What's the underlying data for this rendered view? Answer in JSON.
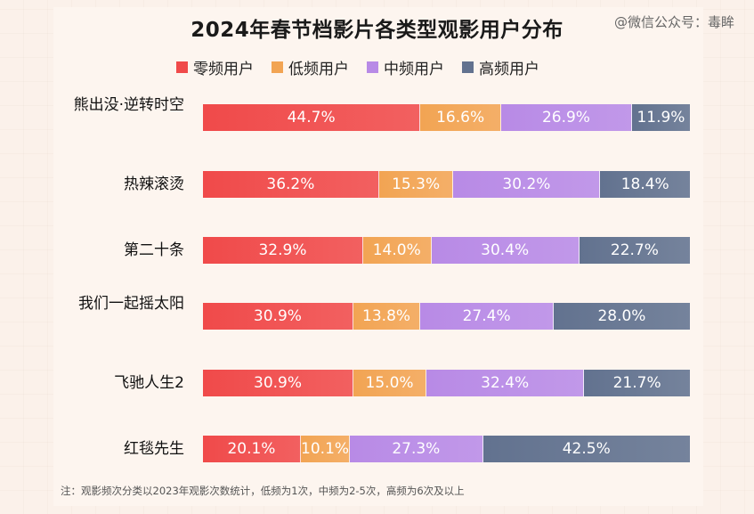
{
  "watermark": "@微信公众号：毒眸",
  "chart_data": {
    "type": "bar",
    "stacked": true,
    "orientation": "horizontal",
    "title": "2024年春节档影片各类型观影用户分布",
    "categories": [
      "熊出没·逆转时空",
      "热辣滚烫",
      "第二十条",
      "我们一起摇太阳",
      "飞驰人生2",
      "红毯先生"
    ],
    "series": [
      {
        "name": "零频用户",
        "color": "#f04a4a",
        "values": [
          44.7,
          36.2,
          32.9,
          30.9,
          30.9,
          20.1
        ]
      },
      {
        "name": "低频用户",
        "color": "#f2a453",
        "values": [
          16.6,
          15.3,
          14.0,
          13.8,
          15.0,
          10.1
        ]
      },
      {
        "name": "中频用户",
        "color": "#b88ae6",
        "values": [
          26.9,
          30.2,
          30.4,
          27.4,
          32.4,
          27.3
        ]
      },
      {
        "name": "高频用户",
        "color": "#62728f",
        "values": [
          11.9,
          18.4,
          22.7,
          28.0,
          21.7,
          42.5
        ]
      }
    ],
    "value_suffix": "%",
    "legend_position": "top",
    "note": "注：观影频次分类以2023年观影次数统计，低频为1次，中频为2-5次，高频为6次及以上"
  }
}
